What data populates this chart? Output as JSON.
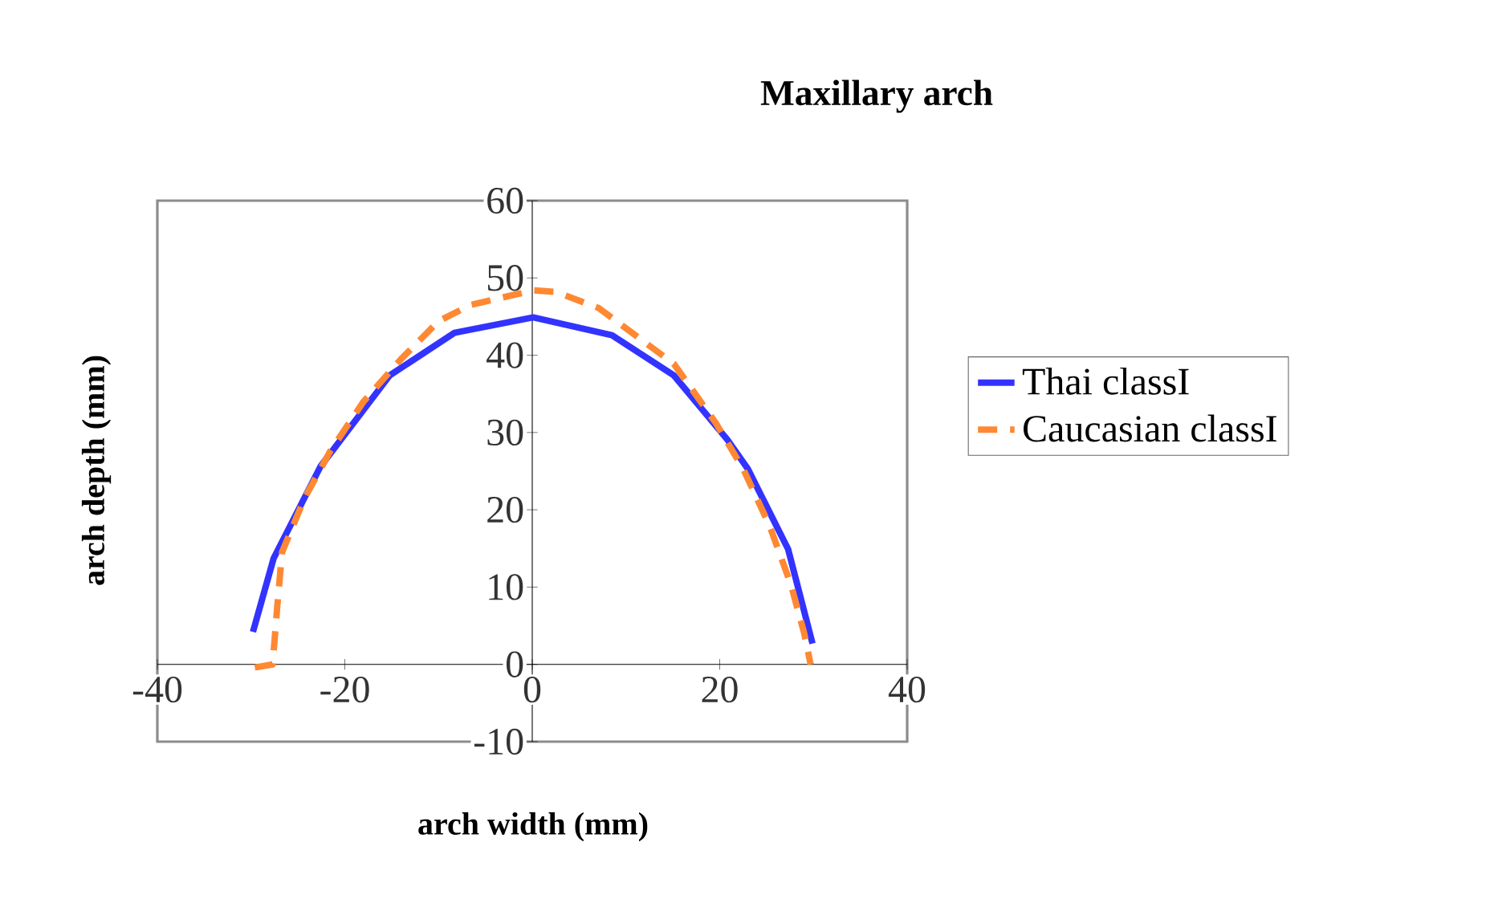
{
  "chart_data": {
    "type": "line",
    "title": "Maxillary arch",
    "xlabel": "arch width (mm)",
    "ylabel": "arch depth (mm)",
    "xlim": [
      -40,
      40
    ],
    "xticks": [
      -40,
      -20,
      0,
      20,
      40
    ],
    "ylim": [
      -10,
      60
    ],
    "yticks": [
      -10,
      0,
      10,
      20,
      30,
      40,
      50,
      60
    ],
    "grid": false,
    "legend": "right",
    "marker": "none",
    "series": [
      {
        "name": "Thai classI",
        "color": "#3333ff",
        "line_style": "solid",
        "x": [
          -29.8,
          -27.6,
          -22.6,
          -15.2,
          -8.3,
          0.1,
          8.5,
          15.1,
          20.8,
          23.0,
          27.3,
          29.9
        ],
        "values": [
          4.2,
          13.7,
          25.6,
          37.4,
          42.9,
          44.9,
          42.6,
          37.4,
          29.1,
          25.3,
          14.9,
          2.7
        ]
      },
      {
        "name": "Caucasian classI",
        "color": "#ff8833",
        "line_style": "dashed",
        "x": [
          -29.6,
          -27.7,
          -27.2,
          -26.7,
          -24.3,
          -21.5,
          -18.0,
          -14.0,
          -10.0,
          -6.6,
          0.1,
          2.5,
          7.1,
          10.2,
          15.1,
          19.6,
          22.5,
          25.3,
          27.6,
          29.0,
          29.7
        ],
        "values": [
          -0.4,
          0,
          7.6,
          14.5,
          21.5,
          27.7,
          34.0,
          39.5,
          44.4,
          46.5,
          48.4,
          48.2,
          46.1,
          43.3,
          38.9,
          31.2,
          25.3,
          18.0,
          10.3,
          4.1,
          0
        ]
      }
    ]
  }
}
